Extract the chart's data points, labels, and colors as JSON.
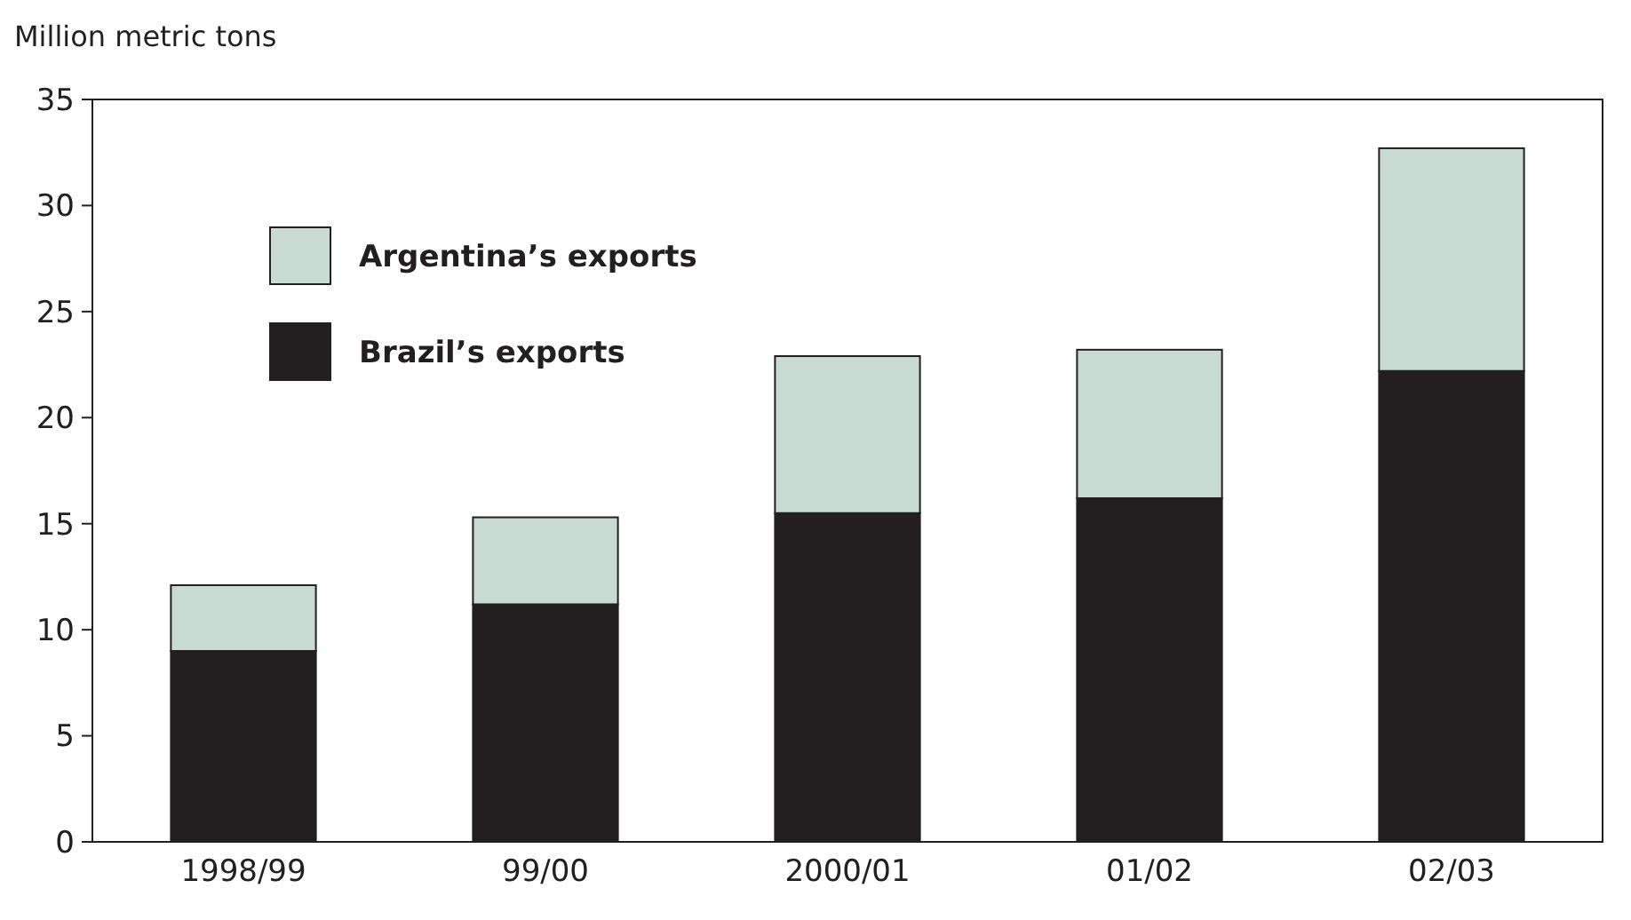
{
  "chart_data": {
    "type": "bar",
    "ylabel": "Million metric tons",
    "categories": [
      "1998/99",
      "99/00",
      "2000/01",
      "01/02",
      "02/03"
    ],
    "stacked": true,
    "series": [
      {
        "name": "Brazil’s exports",
        "color": "#231f20",
        "values": [
          9.0,
          11.2,
          15.5,
          16.2,
          22.2
        ]
      },
      {
        "name": "Argentina’s exports",
        "color": "#c8dbd3",
        "values": [
          3.1,
          4.1,
          7.4,
          7.0,
          10.5
        ]
      }
    ],
    "ylim": [
      0,
      35
    ],
    "yticks": [
      0,
      5,
      10,
      15,
      20,
      25,
      30,
      35
    ],
    "grid": false,
    "legend": "top left"
  }
}
